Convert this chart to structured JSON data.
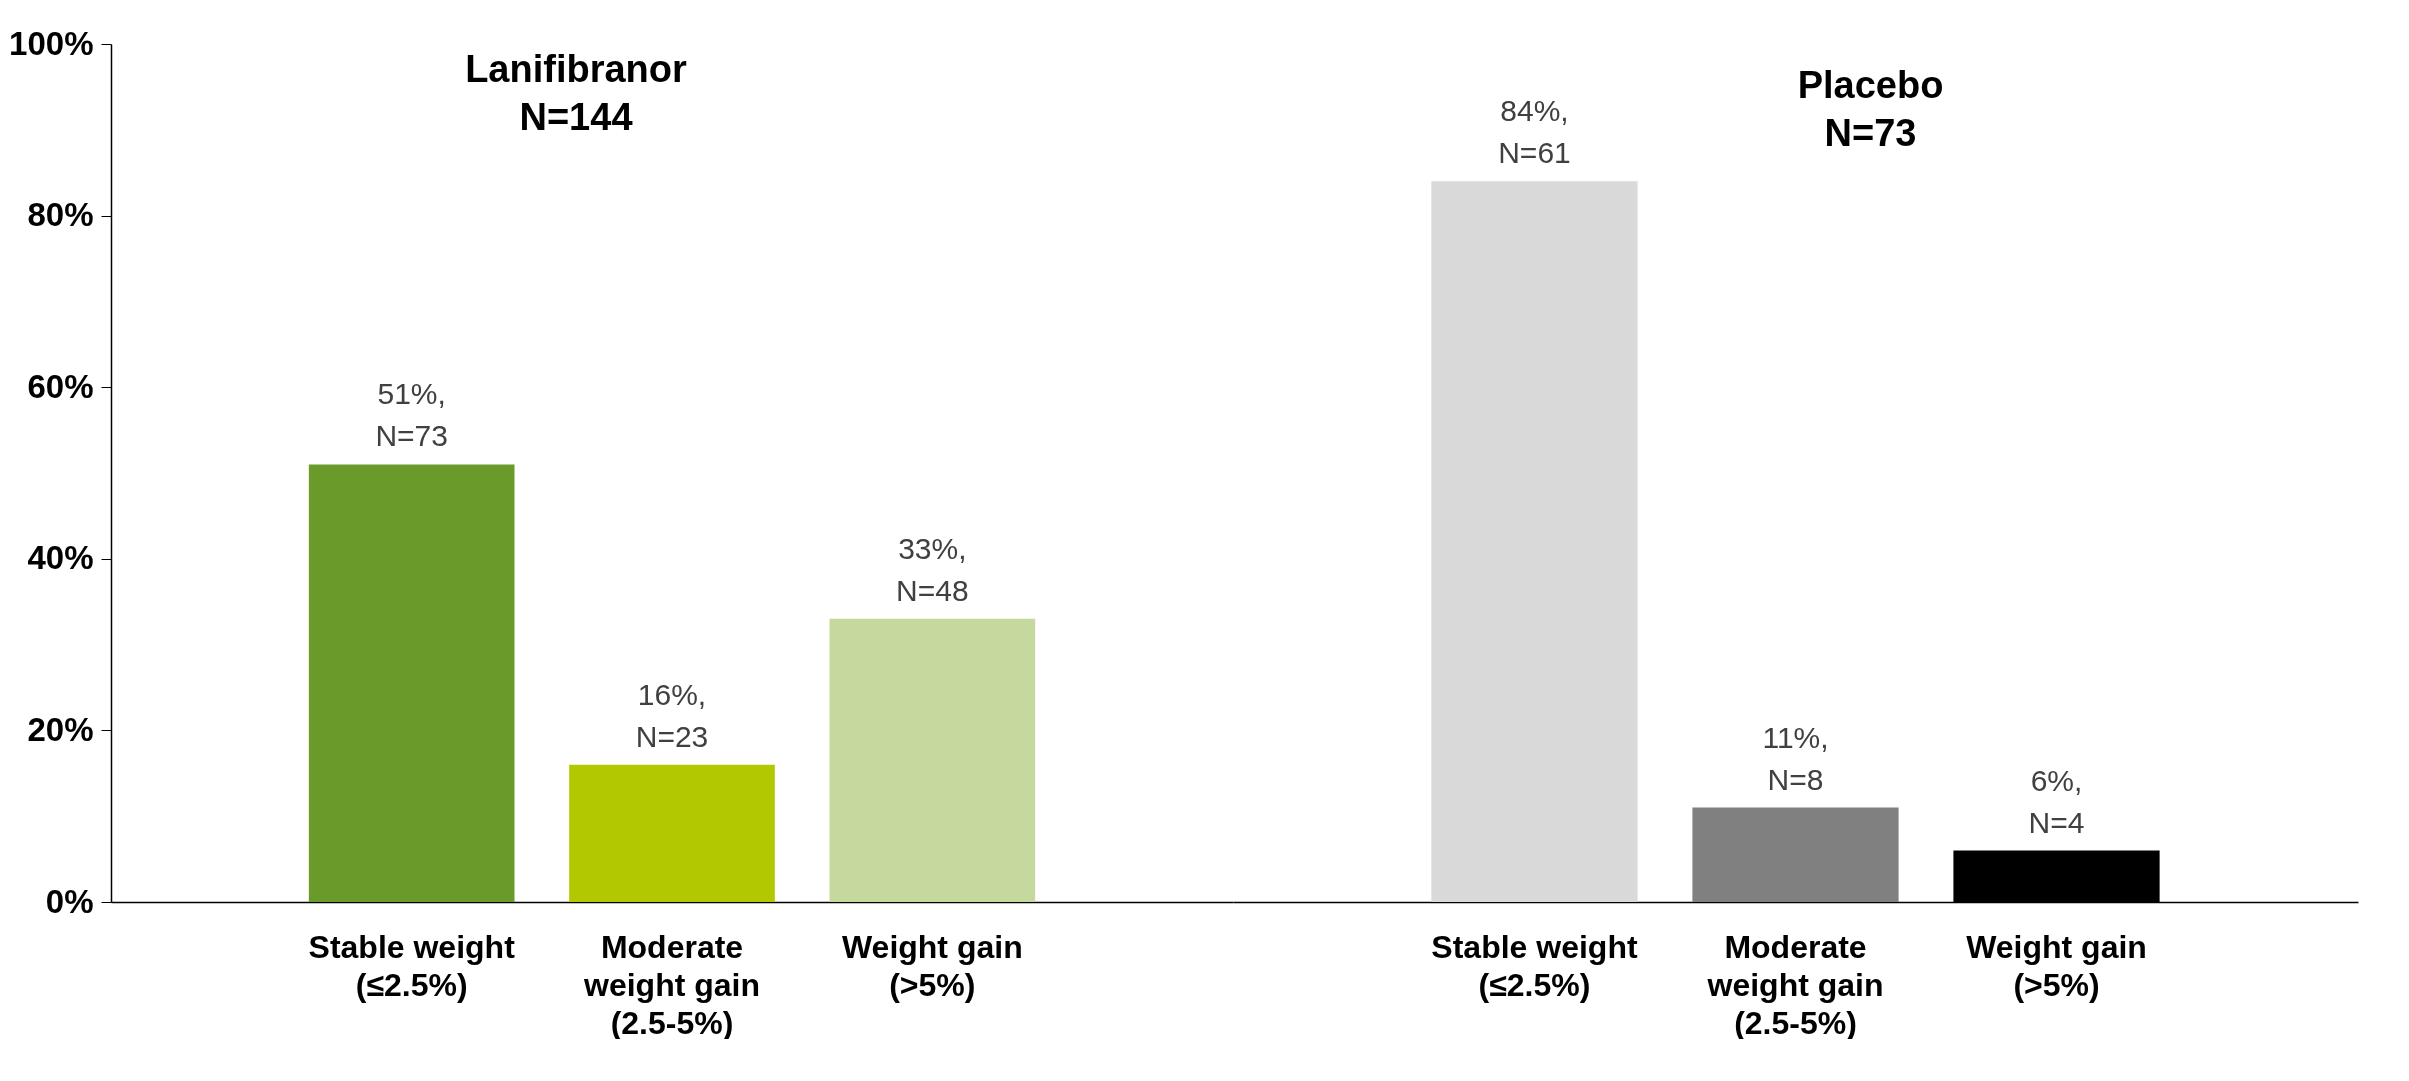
{
  "chart_data": [
    {
      "type": "bar",
      "title": "Lanifibranor\nN=144",
      "categories": [
        "Stable weight (≤2.5%)",
        "Moderate weight gain (2.5-5%)",
        "Weight gain (>5%)"
      ],
      "values": [
        51,
        16,
        33
      ],
      "colors": [
        "#6a9a2a",
        "#b2c800",
        "#c5d89d"
      ],
      "value_labels": [
        "51%, N=73",
        "16%, N=23",
        "33%, N=48"
      ],
      "ylim": [
        0,
        100
      ],
      "yticks": [
        {
          "value": 0,
          "label": "0%"
        },
        {
          "value": 20,
          "label": "20%"
        },
        {
          "value": 40,
          "label": "40%"
        },
        {
          "value": 60,
          "label": "60%"
        },
        {
          "value": 80,
          "label": "80%"
        },
        {
          "value": 100,
          "label": "100%"
        }
      ],
      "grid": false,
      "legend": false
    },
    {
      "type": "bar",
      "title": "Placebo\nN=73",
      "categories": [
        "Stable weight (≤2.5%)",
        "Moderate weight gain (2.5-5%)",
        "Weight gain (>5%)"
      ],
      "values": [
        84,
        11,
        6
      ],
      "colors": [
        "#d9d9d9",
        "#808080",
        "#000000"
      ],
      "value_labels": [
        "84%, N=61",
        "11%, N=8",
        "6%, N=4"
      ],
      "ylim": [
        0,
        100
      ],
      "grid": false,
      "legend": false,
      "tick_labels": "x"
    }
  ]
}
